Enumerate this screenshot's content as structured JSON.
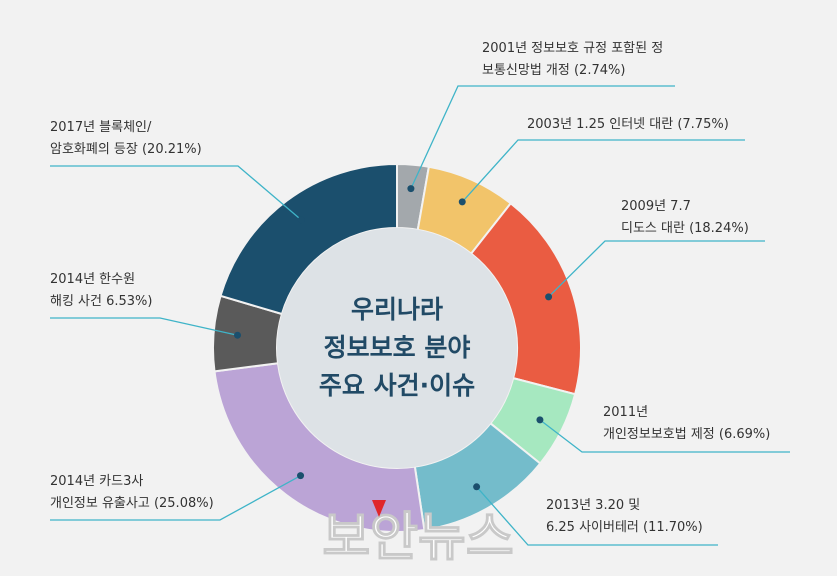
{
  "center_title": [
    "우리나라",
    "정보보호 분야",
    "주요 사건·이슈"
  ],
  "watermark": "보안뉴스",
  "chart_data": {
    "type": "pie",
    "donut": true,
    "slices": [
      {
        "label_lines": [
          "2001년 정보보호 규정 포함된 정",
          "보통신망법 개정  (2.74%)"
        ],
        "value": 2.74,
        "color": "#a3a8ac"
      },
      {
        "label_lines": [
          "2003년 1.25 인터넷 대란  (7.75%)"
        ],
        "value": 7.75,
        "color": "#f2c46a"
      },
      {
        "label_lines": [
          "2009년 7.7",
          "디도스 대란 (18.24%)"
        ],
        "value": 18.24,
        "color": "#ea5c42"
      },
      {
        "label_lines": [
          "2011년",
          "개인정보보호법 제정 (6.69%)"
        ],
        "value": 6.69,
        "color": "#a6e8c0"
      },
      {
        "label_lines": [
          "2013년 3.20 및",
          "6.25 사이버테러 (11.70%)"
        ],
        "value": 11.7,
        "color": "#74bccb"
      },
      {
        "label_lines": [
          "2014년 카드3사",
          "개인정보 유출사고 (25.08%)"
        ],
        "value": 25.08,
        "color": "#bba4d6"
      },
      {
        "label_lines": [
          "2014년 한수원",
          "해킹 사건  6.53%)"
        ],
        "value": 6.53,
        "color": "#5a5a5a"
      },
      {
        "label_lines": [
          "2017년 블록체인/",
          "암호화폐의 등장 (20.21%)"
        ],
        "value": 20.21,
        "color": "#1b4f6d"
      }
    ]
  }
}
